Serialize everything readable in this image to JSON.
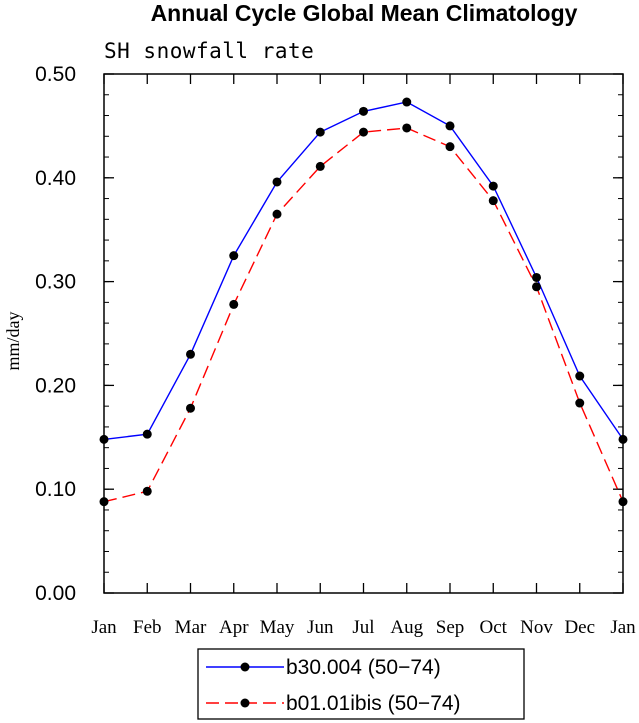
{
  "chart_data": {
    "type": "line",
    "title": "Annual Cycle Global Mean Climatology",
    "subtitle": "SH snowfall rate",
    "ylabel": "mm/day",
    "xlabel": "",
    "categories": [
      "Jan",
      "Feb",
      "Mar",
      "Apr",
      "May",
      "Jun",
      "Jul",
      "Aug",
      "Sep",
      "Oct",
      "Nov",
      "Dec",
      "Jan"
    ],
    "ylim": [
      0.0,
      0.5
    ],
    "yticks": [
      "0.00",
      "0.10",
      "0.20",
      "0.30",
      "0.40",
      "0.50"
    ],
    "yminor_step": 0.02,
    "legend_position": "bottom-center",
    "series": [
      {
        "name": "b30.004 (50−74)",
        "color": "#0000ff",
        "dash": "solid",
        "values": [
          0.148,
          0.153,
          0.23,
          0.325,
          0.396,
          0.444,
          0.464,
          0.473,
          0.45,
          0.392,
          0.304,
          0.209,
          0.148
        ]
      },
      {
        "name": "b01.01ibis (50−74)",
        "color": "#ff0000",
        "dash": "dashed",
        "values": [
          0.088,
          0.098,
          0.178,
          0.278,
          0.365,
          0.411,
          0.444,
          0.448,
          0.43,
          0.378,
          0.295,
          0.183,
          0.088
        ]
      }
    ]
  }
}
